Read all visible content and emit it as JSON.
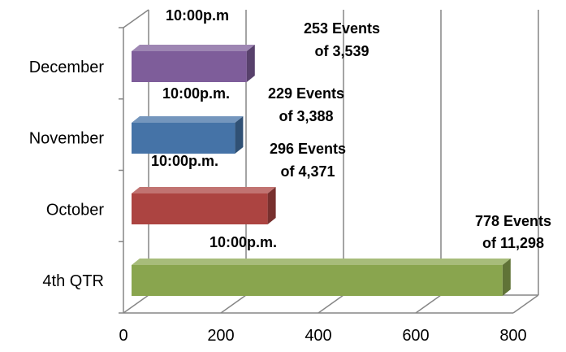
{
  "chart_data": {
    "type": "bar",
    "orientation": "horizontal",
    "style": "3d",
    "categories": [
      "December",
      "November",
      "October",
      "4th QTR"
    ],
    "values": [
      253,
      229,
      296,
      778
    ],
    "colors": [
      "#7e5d9a",
      "#4573a7",
      "#ac4441",
      "#89a54e"
    ],
    "xlim": [
      0,
      800
    ],
    "xticks": [
      "0",
      "200",
      "400",
      "600",
      "800"
    ],
    "grid": true,
    "legend": "none",
    "annotations": [
      {
        "category": "December",
        "time": "10:00p.m",
        "events": "253 Events",
        "total": "of 3,539"
      },
      {
        "category": "November",
        "time": "10:00p.m.",
        "events": "229 Events",
        "total": "of 3,388"
      },
      {
        "category": "October",
        "time": "10:00p.m.",
        "events": "296 Events",
        "total": "of 4,371"
      },
      {
        "category": "4th QTR",
        "time": "10:00p.m.",
        "events": "778 Events",
        "total": "of 11,298"
      }
    ]
  }
}
